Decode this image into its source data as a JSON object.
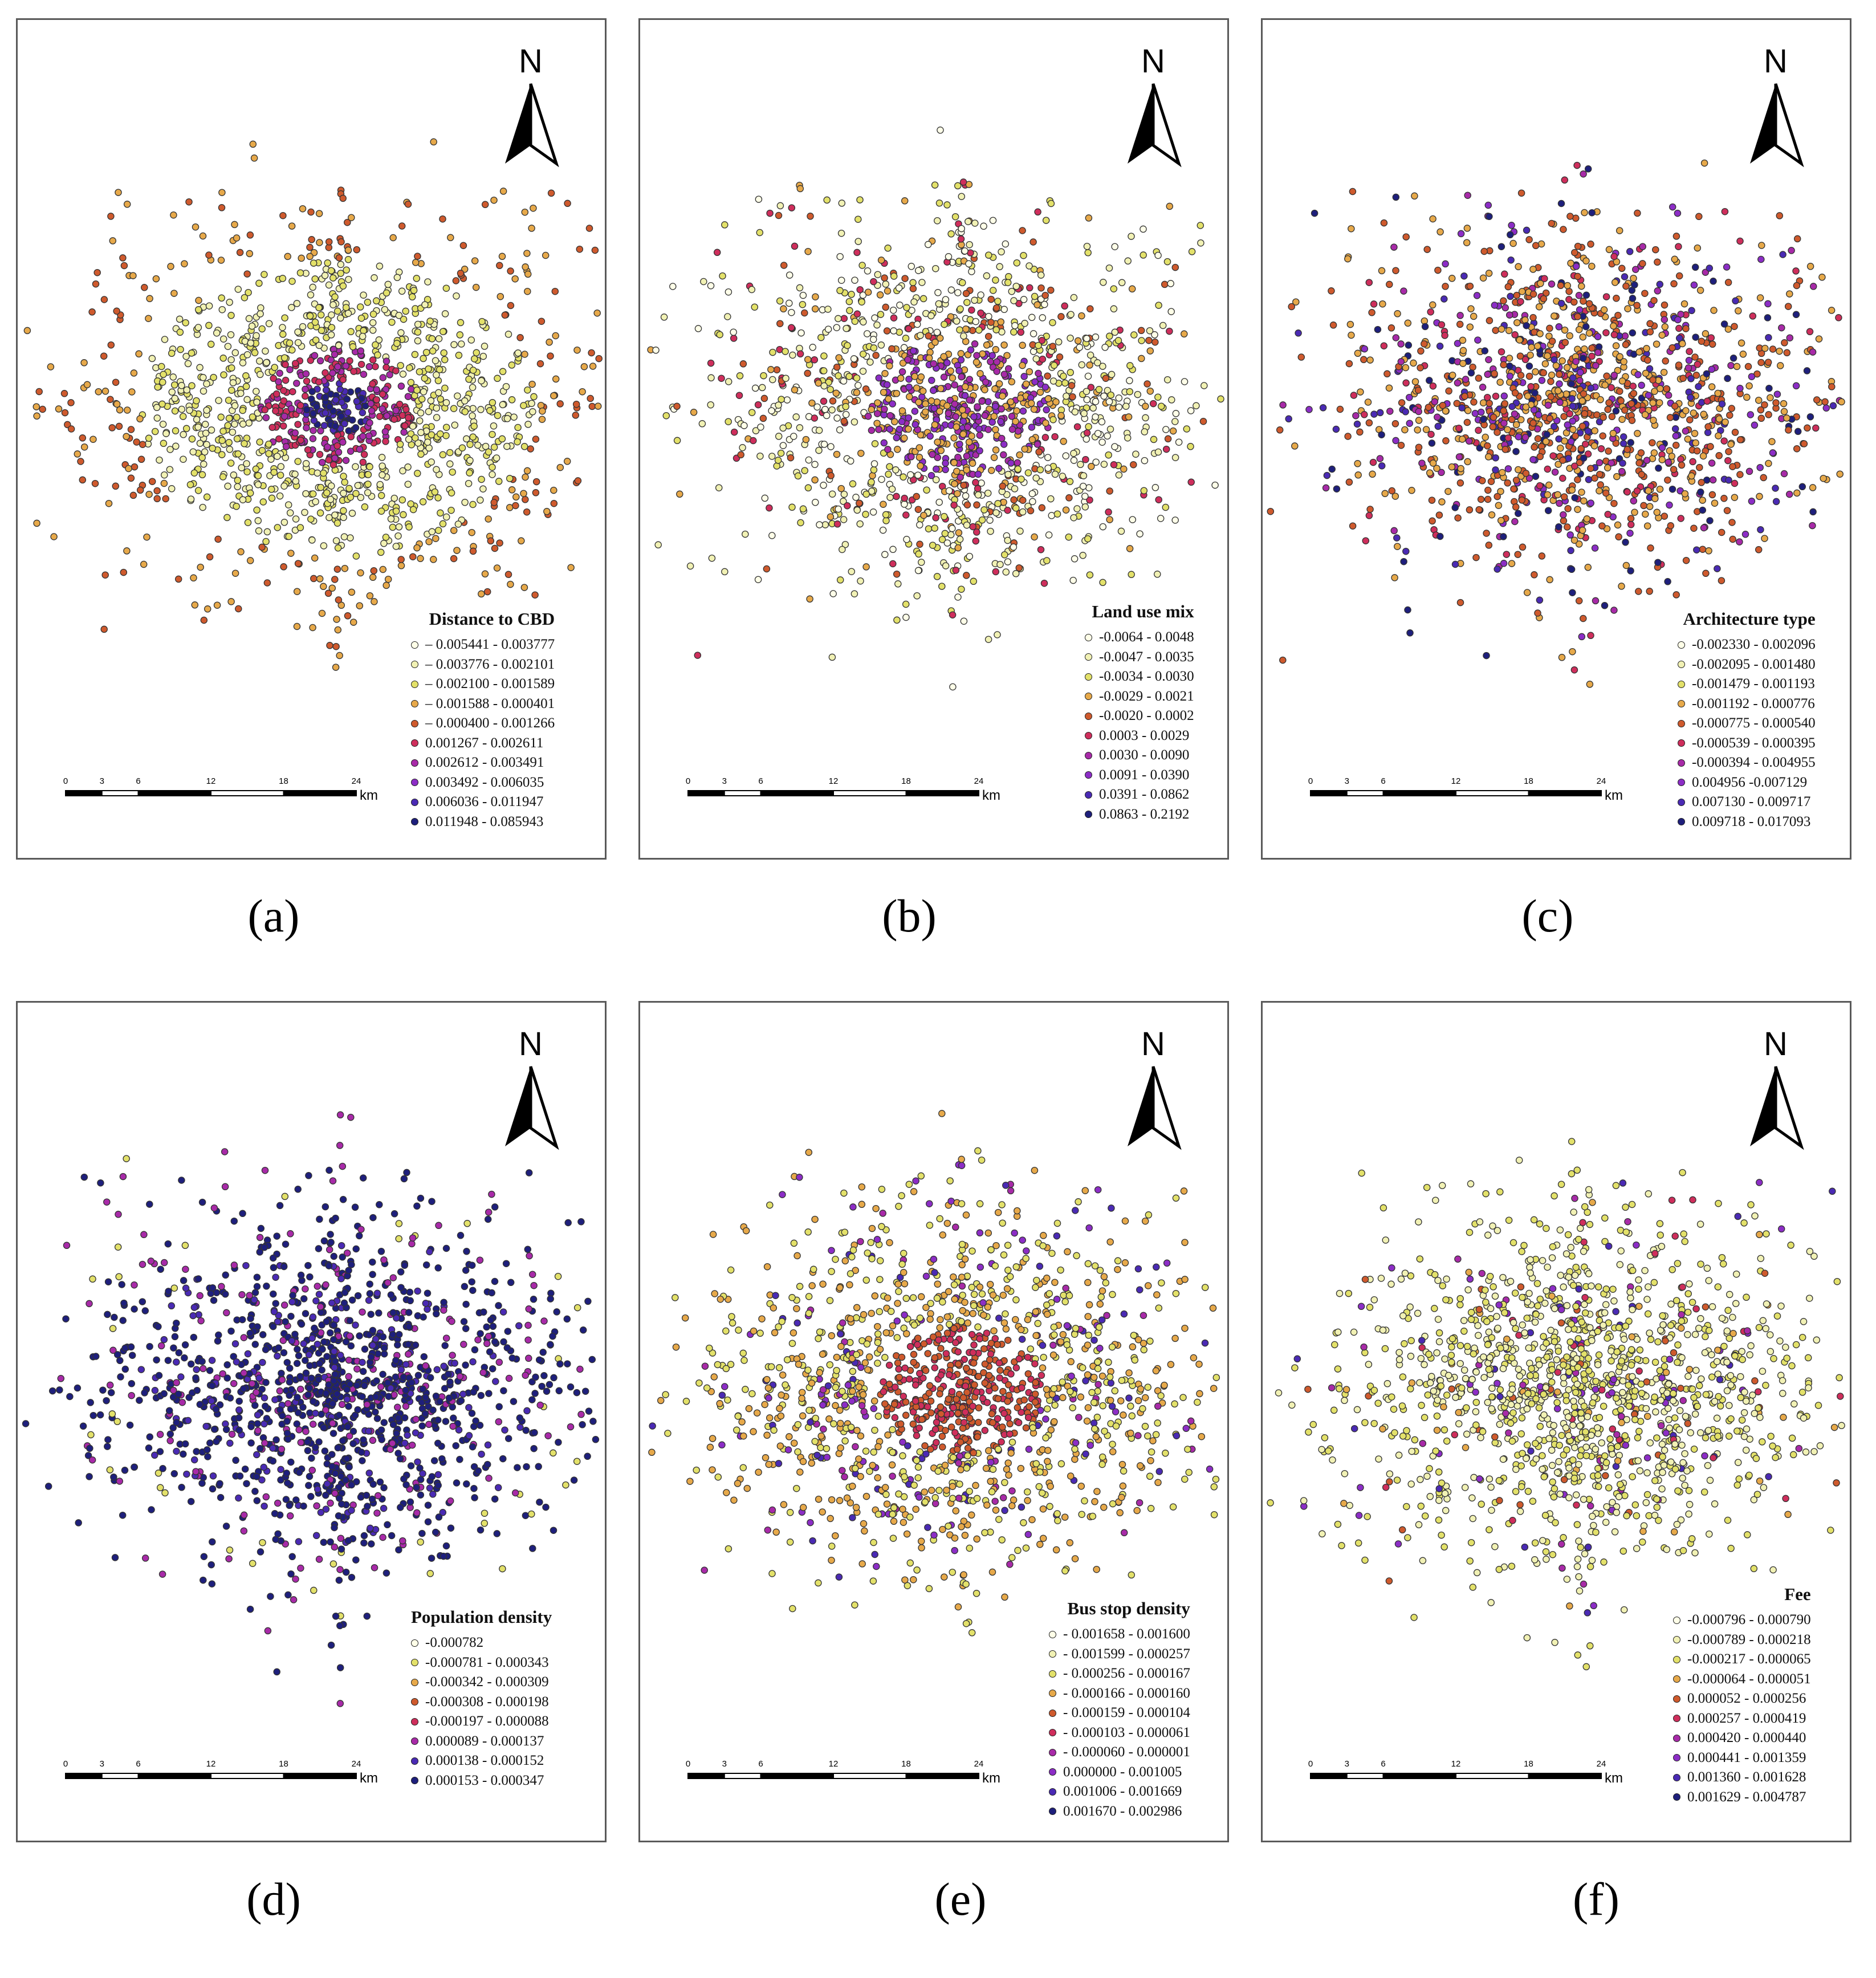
{
  "compass_letter": "N",
  "scale_bar": {
    "ticks": [
      "0",
      "3",
      "6",
      "12",
      "18",
      "24"
    ],
    "unit": "km"
  },
  "colors": {
    "ramp10": [
      "#ffffe8",
      "#f1f1b4",
      "#e3e16a",
      "#e7a94a",
      "#cf5a2d",
      "#cf2e5c",
      "#a82aa8",
      "#8c2dc6",
      "#4a2ab4",
      "#1e1f7c"
    ],
    "ramp8": [
      "#ffffe8",
      "#e3e16a",
      "#e7a94a",
      "#cf5a2d",
      "#cf2e5c",
      "#a82aa8",
      "#4a2ab4",
      "#1e1f7c"
    ]
  },
  "panels": [
    {
      "label": "(a)",
      "legend_title": "Distance to CBD",
      "legend": [
        "– 0.005441 - 0.003777",
        "– 0.003776 - 0.002101",
        "– 0.002100 - 0.001589",
        "– 0.001588 - 0.000401",
        "– 0.000400 - 0.001266",
        "0.001267 - 0.002611",
        "0.002612 - 0.003491",
        "0.003492 - 0.006035",
        "0.006036 - 0.011947",
        "0.011948 - 0.085943"
      ]
    },
    {
      "label": "(b)",
      "legend_title": "Land use mix",
      "legend": [
        "-0.0064 - 0.0048",
        "-0.0047 - 0.0035",
        "-0.0034 - 0.0030",
        "-0.0029 - 0.0021",
        "-0.0020 - 0.0002",
        "0.0003 - 0.0029",
        "0.0030 - 0.0090",
        "0.0091 - 0.0390",
        "0.0391 - 0.0862",
        "0.0863 - 0.2192"
      ]
    },
    {
      "label": "(c)",
      "legend_title": "Architecture type",
      "legend": [
        "-0.002330 - 0.002096",
        "-0.002095 - 0.001480",
        "-0.001479 - 0.001193",
        "-0.001192 - 0.000776",
        "-0.000775 - 0.000540",
        "-0.000539 - 0.000395",
        "-0.000394 - 0.004955",
        "0.004956 -0.007129",
        "0.007130 - 0.009717",
        "0.009718 - 0.017093"
      ]
    },
    {
      "label": "(d)",
      "legend_title": "Population density",
      "legend": [
        "-0.000782",
        "-0.000781 - 0.000343",
        "-0.000342 - 0.000309",
        "-0.000308 - 0.000198",
        "-0.000197 - 0.000088",
        "0.000089 - 0.000137",
        "0.000138 - 0.000152",
        "0.000153 - 0.000347"
      ]
    },
    {
      "label": "(e)",
      "legend_title": "Bus stop density",
      "legend": [
        "- 0.001658 - 0.001600",
        "- 0.001599 - 0.000257",
        "- 0.000256 - 0.000167",
        "- 0.000166 - 0.000160",
        "- 0.000159 - 0.000104",
        "- 0.000103 - 0.000061",
        "- 0.000060 - 0.000001",
        "0.000000 - 0.001005",
        "0.001006 - 0.001669",
        "0.001670 - 0.002986"
      ]
    },
    {
      "label": "(f)",
      "legend_title": "Fee",
      "legend": [
        "-0.000796 - 0.000790",
        "-0.000789 - 0.000218",
        "-0.000217 - 0.000065",
        "-0.000064 - 0.000051",
        "0.000052 - 0.000256",
        "0.000257 - 0.000419",
        "0.000420 - 0.000440",
        "0.000441 - 0.001359",
        "0.001360 - 0.001628",
        "0.001629 - 0.004787"
      ]
    }
  ]
}
